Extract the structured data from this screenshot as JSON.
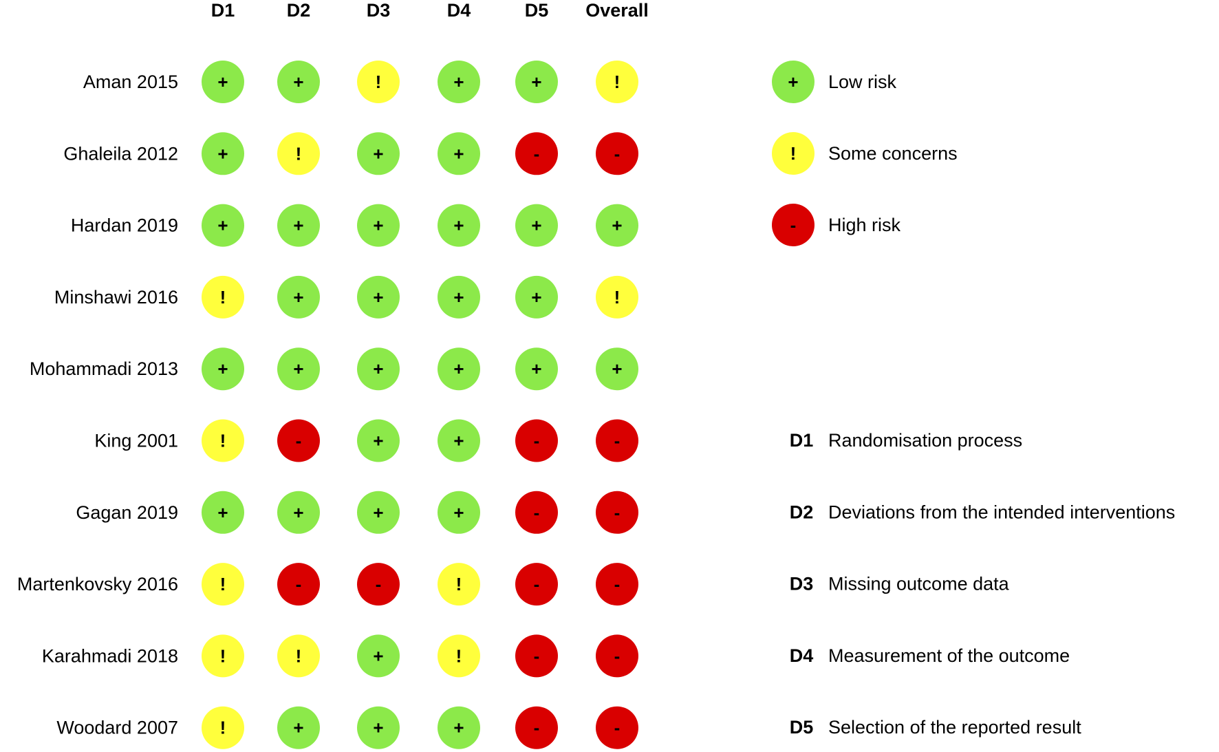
{
  "chart_data": {
    "type": "table",
    "columns": [
      "D1",
      "D2",
      "D3",
      "D4",
      "D5",
      "Overall"
    ],
    "rows": [
      {
        "study": "Aman 2015",
        "judgements": [
          "low",
          "low",
          "some",
          "low",
          "low",
          "some"
        ]
      },
      {
        "study": "Ghaleila 2012",
        "judgements": [
          "low",
          "some",
          "low",
          "low",
          "high",
          "high"
        ]
      },
      {
        "study": "Hardan 2019",
        "judgements": [
          "low",
          "low",
          "low",
          "low",
          "low",
          "low"
        ]
      },
      {
        "study": "Minshawi 2016",
        "judgements": [
          "some",
          "low",
          "low",
          "low",
          "low",
          "some"
        ]
      },
      {
        "study": "Mohammadi 2013",
        "judgements": [
          "low",
          "low",
          "low",
          "low",
          "low",
          "low"
        ]
      },
      {
        "study": "King 2001",
        "judgements": [
          "some",
          "high",
          "low",
          "low",
          "high",
          "high"
        ]
      },
      {
        "study": "Gagan 2019",
        "judgements": [
          "low",
          "low",
          "low",
          "low",
          "high",
          "high"
        ]
      },
      {
        "study": "Martenkovsky 2016",
        "judgements": [
          "some",
          "high",
          "high",
          "some",
          "high",
          "high"
        ]
      },
      {
        "study": "Karahmadi 2018",
        "judgements": [
          "some",
          "some",
          "low",
          "some",
          "high",
          "high"
        ]
      },
      {
        "study": "Woodard 2007",
        "judgements": [
          "some",
          "low",
          "low",
          "low",
          "high",
          "high"
        ]
      }
    ],
    "judgement_levels": [
      {
        "key": "low",
        "label": "Low risk",
        "symbol": "+",
        "color": "#8CE94A"
      },
      {
        "key": "some",
        "label": "Some concerns",
        "symbol": "!",
        "color": "#FFFF3C"
      },
      {
        "key": "high",
        "label": "High risk",
        "symbol": "-",
        "color": "#D90000"
      }
    ],
    "domains": [
      {
        "code": "D1",
        "label": "Randomisation process"
      },
      {
        "code": "D2",
        "label": "Deviations from the intended interventions"
      },
      {
        "code": "D3",
        "label": "Missing outcome data"
      },
      {
        "code": "D4",
        "label": "Measurement of the outcome"
      },
      {
        "code": "D5",
        "label": "Selection of the reported result"
      }
    ]
  }
}
